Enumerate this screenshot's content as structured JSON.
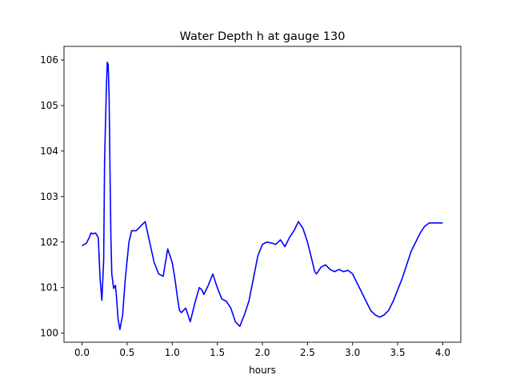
{
  "chart_data": {
    "type": "line",
    "title": "Water Depth h at gauge 130",
    "xlabel": "hours",
    "ylabel": "",
    "xlim": [
      -0.2,
      4.2
    ],
    "ylim": [
      99.8,
      106.3
    ],
    "xticks": [
      0.0,
      0.5,
      1.0,
      1.5,
      2.0,
      2.5,
      3.0,
      3.5,
      4.0
    ],
    "xtick_labels": [
      "0.0",
      "0.5",
      "1.0",
      "1.5",
      "2.0",
      "2.5",
      "3.0",
      "3.5",
      "4.0"
    ],
    "yticks": [
      100,
      101,
      102,
      103,
      104,
      105,
      106
    ],
    "ytick_labels": [
      "100",
      "101",
      "102",
      "103",
      "104",
      "105",
      "106"
    ],
    "grid": false,
    "series": [
      {
        "color": "#0000ff",
        "x": [
          0.0,
          0.05,
          0.08,
          0.1,
          0.12,
          0.15,
          0.18,
          0.2,
          0.22,
          0.24,
          0.25,
          0.27,
          0.28,
          0.29,
          0.3,
          0.31,
          0.32,
          0.33,
          0.35,
          0.37,
          0.38,
          0.4,
          0.42,
          0.45,
          0.48,
          0.5,
          0.52,
          0.55,
          0.6,
          0.65,
          0.7,
          0.75,
          0.8,
          0.85,
          0.9,
          0.95,
          1.0,
          1.03,
          1.06,
          1.08,
          1.1,
          1.15,
          1.2,
          1.25,
          1.3,
          1.33,
          1.35,
          1.4,
          1.45,
          1.5,
          1.55,
          1.6,
          1.65,
          1.7,
          1.75,
          1.8,
          1.85,
          1.9,
          1.95,
          2.0,
          2.05,
          2.1,
          2.15,
          2.2,
          2.25,
          2.3,
          2.35,
          2.4,
          2.45,
          2.5,
          2.55,
          2.58,
          2.6,
          2.65,
          2.7,
          2.75,
          2.8,
          2.85,
          2.9,
          2.95,
          3.0,
          3.05,
          3.1,
          3.15,
          3.2,
          3.25,
          3.3,
          3.35,
          3.4,
          3.45,
          3.5,
          3.55,
          3.6,
          3.65,
          3.7,
          3.75,
          3.8,
          3.85,
          3.9,
          3.95,
          4.0
        ],
        "y": [
          101.92,
          101.98,
          102.1,
          102.2,
          102.18,
          102.2,
          102.1,
          101.2,
          100.72,
          101.6,
          103.8,
          105.4,
          105.95,
          105.9,
          105.2,
          103.6,
          102.1,
          101.3,
          100.98,
          101.05,
          100.85,
          100.3,
          100.08,
          100.4,
          101.2,
          101.6,
          102.0,
          102.25,
          102.25,
          102.35,
          102.45,
          102.0,
          101.55,
          101.3,
          101.25,
          101.85,
          101.55,
          101.2,
          100.75,
          100.5,
          100.45,
          100.55,
          100.25,
          100.65,
          101.0,
          100.95,
          100.85,
          101.05,
          101.3,
          101.0,
          100.75,
          100.7,
          100.55,
          100.25,
          100.15,
          100.4,
          100.7,
          101.2,
          101.7,
          101.95,
          102.0,
          101.98,
          101.95,
          102.05,
          101.9,
          102.1,
          102.25,
          102.45,
          102.3,
          102.0,
          101.6,
          101.35,
          101.3,
          101.45,
          101.5,
          101.4,
          101.35,
          101.4,
          101.35,
          101.38,
          101.3,
          101.1,
          100.9,
          100.7,
          100.5,
          100.4,
          100.35,
          100.4,
          100.5,
          100.7,
          100.95,
          101.2,
          101.5,
          101.8,
          102.0,
          102.2,
          102.35,
          102.42,
          102.42,
          102.42,
          102.42
        ]
      }
    ]
  }
}
